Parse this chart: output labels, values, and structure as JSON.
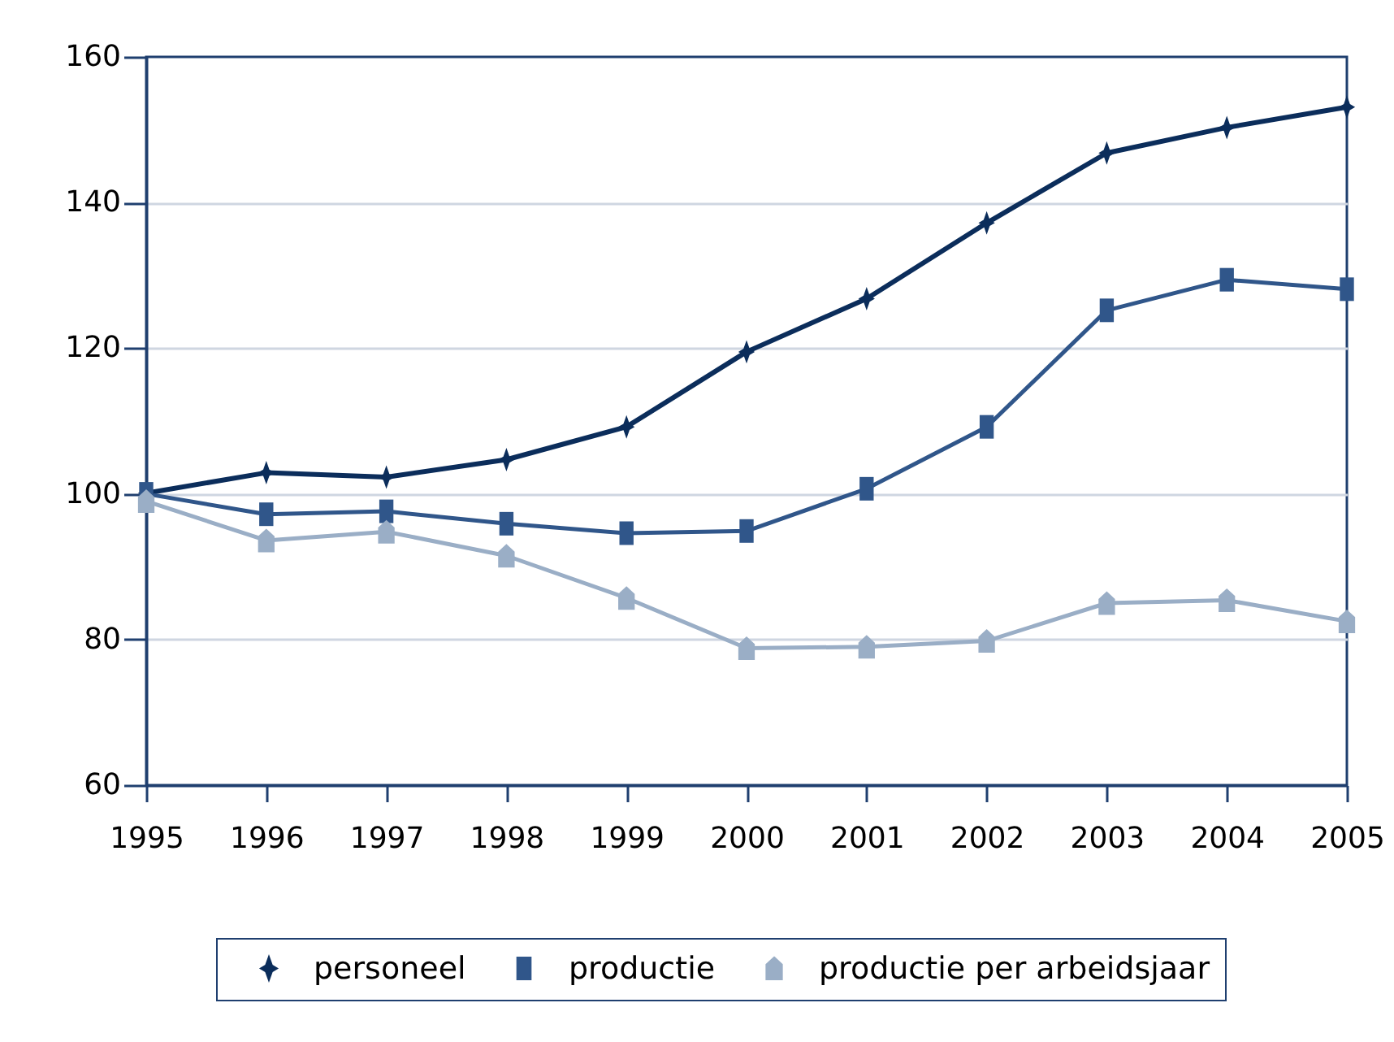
{
  "chart_data": {
    "type": "line",
    "x": [
      1995,
      1996,
      1997,
      1998,
      1999,
      2000,
      2001,
      2002,
      2003,
      2004,
      2005
    ],
    "xlim": [
      1995,
      2005
    ],
    "xticks": [
      1995,
      1996,
      1997,
      1998,
      1999,
      2000,
      2001,
      2002,
      2003,
      2004,
      2005
    ],
    "ylim": [
      60,
      160
    ],
    "yticks": [
      60,
      80,
      100,
      120,
      140,
      160
    ],
    "grid": "y",
    "legend": "bottom",
    "line_style": "solid",
    "series": [
      {
        "name": "personeel",
        "color": "#0b2d5b",
        "marker": "star",
        "values": [
          100.1,
          102.9,
          102.3,
          104.7,
          109.2,
          119.5,
          126.8,
          137.2,
          146.8,
          150.3,
          153.1
        ]
      },
      {
        "name": "productie",
        "color": "#30568a",
        "marker": "square",
        "values": [
          100,
          97.2,
          97.6,
          95.9,
          94.6,
          94.9,
          100.7,
          109.2,
          125.2,
          129.4,
          128.1
        ]
      },
      {
        "name": "productie per arbeidsjaar",
        "color": "#9aaec6",
        "marker": "triangle",
        "values": [
          99.0,
          93.6,
          94.8,
          91.5,
          85.7,
          78.8,
          79.0,
          79.8,
          85.0,
          85.4,
          82.5
        ]
      }
    ]
  }
}
